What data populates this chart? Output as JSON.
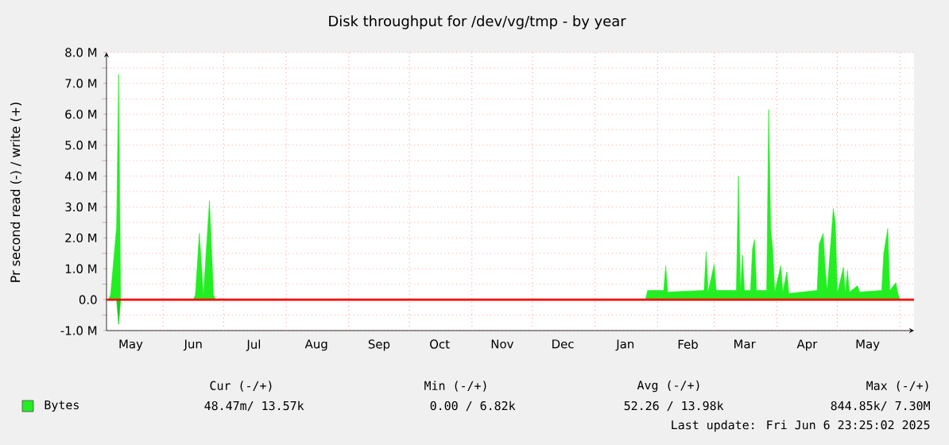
{
  "chart_data": {
    "type": "area",
    "title": "Disk throughput for /dev/vg/tmp - by year",
    "ylabel": "Pr second read (-) / write (+)",
    "xlim": [
      "2024-05-04",
      "2025-06-08"
    ],
    "ylim": [
      -1,
      8
    ],
    "yticks": [
      {
        "value": -1,
        "label": "-1.0 M"
      },
      {
        "value": 0,
        "label": "0.0"
      },
      {
        "value": 1,
        "label": "1.0 M"
      },
      {
        "value": 2,
        "label": "2.0 M"
      },
      {
        "value": 3,
        "label": "3.0 M"
      },
      {
        "value": 4,
        "label": "4.0 M"
      },
      {
        "value": 5,
        "label": "5.0 M"
      },
      {
        "value": 6,
        "label": "6.0 M"
      },
      {
        "value": 7,
        "label": "7.0 M"
      },
      {
        "value": 8,
        "label": "8.0 M"
      }
    ],
    "xticks": [
      {
        "value": "2024-05-16",
        "label": "May"
      },
      {
        "value": "2024-06-01",
        "label": null
      },
      {
        "value": "2024-06-16",
        "label": "Jun"
      },
      {
        "value": "2024-07-01",
        "label": null
      },
      {
        "value": "2024-07-16",
        "label": "Jul"
      },
      {
        "value": "2024-08-01",
        "label": null
      },
      {
        "value": "2024-08-16",
        "label": "Aug"
      },
      {
        "value": "2024-09-01",
        "label": null
      },
      {
        "value": "2024-09-16",
        "label": "Sep"
      },
      {
        "value": "2024-10-01",
        "label": null
      },
      {
        "value": "2024-10-16",
        "label": "Oct"
      },
      {
        "value": "2024-11-01",
        "label": null
      },
      {
        "value": "2024-11-16",
        "label": "Nov"
      },
      {
        "value": "2024-12-01",
        "label": null
      },
      {
        "value": "2024-12-16",
        "label": "Dec"
      },
      {
        "value": "2025-01-01",
        "label": null
      },
      {
        "value": "2025-01-16",
        "label": "Jan"
      },
      {
        "value": "2025-02-01",
        "label": null
      },
      {
        "value": "2025-02-16",
        "label": "Feb"
      },
      {
        "value": "2025-03-01",
        "label": null
      },
      {
        "value": "2025-03-16",
        "label": "Mar"
      },
      {
        "value": "2025-04-01",
        "label": null
      },
      {
        "value": "2025-04-16",
        "label": "Apr"
      },
      {
        "value": "2025-05-01",
        "label": null
      },
      {
        "value": "2025-05-16",
        "label": "May"
      },
      {
        "value": "2025-06-01",
        "label": null
      }
    ],
    "grid": true,
    "legend": "bottom left",
    "ref_lines": [
      {
        "axis": "y",
        "value": 0,
        "color": "#ff0000"
      }
    ],
    "series": [
      {
        "name": "Bytes",
        "color": "#22ee22",
        "x": [
          "2024-05-05",
          "2024-05-06",
          "2024-05-09",
          "2024-05-10",
          "2024-05-11",
          "2024-06-16",
          "2024-06-17",
          "2024-06-19",
          "2024-06-21",
          "2024-06-24",
          "2024-06-26",
          "2024-06-27",
          "2025-01-26",
          "2025-01-27",
          "2025-02-04",
          "2025-02-05",
          "2025-02-06",
          "2025-02-24",
          "2025-02-25",
          "2025-02-26",
          "2025-03-01",
          "2025-03-02",
          "2025-03-12",
          "2025-03-13",
          "2025-03-14",
          "2025-03-15",
          "2025-03-16",
          "2025-03-19",
          "2025-03-20",
          "2025-03-21",
          "2025-03-22",
          "2025-03-27",
          "2025-03-28",
          "2025-03-29",
          "2025-03-30",
          "2025-03-31",
          "2025-04-03",
          "2025-04-04",
          "2025-04-06",
          "2025-04-07",
          "2025-04-21",
          "2025-04-22",
          "2025-04-24",
          "2025-04-25",
          "2025-04-26",
          "2025-04-29",
          "2025-04-30",
          "2025-05-01",
          "2025-05-04",
          "2025-05-05",
          "2025-05-06",
          "2025-05-07",
          "2025-05-11",
          "2025-05-12",
          "2025-05-23",
          "2025-05-24",
          "2025-05-26",
          "2025-05-27",
          "2025-05-30",
          "2025-05-31",
          "2025-06-01"
        ],
        "values": [
          0,
          0.15,
          2.35,
          7.3,
          0,
          0,
          0.15,
          2.15,
          0.15,
          3.2,
          0.15,
          0,
          0,
          0.3,
          0.3,
          1.1,
          0.25,
          0.3,
          1.55,
          0.25,
          1.15,
          0.3,
          0.3,
          4.0,
          0.3,
          1.45,
          0.3,
          0.3,
          1.65,
          1.95,
          0.3,
          0.3,
          6.15,
          2.3,
          1.6,
          0.25,
          1.1,
          0.25,
          0.9,
          0.2,
          0.3,
          1.8,
          2.15,
          1.0,
          0.3,
          2.95,
          2.5,
          0.2,
          1.05,
          0.2,
          0.95,
          0.25,
          0.45,
          0.25,
          0.3,
          1.5,
          2.3,
          0.3,
          0.55,
          0.2,
          0
        ]
      },
      {
        "color": "#10d010",
        "x": [
          "2024-05-09",
          "2024-05-10",
          "2024-05-11"
        ],
        "values": [
          0,
          -0.8,
          0
        ]
      }
    ],
    "annotations": [
      "Cur (-/+)",
      "Min (-/+)",
      "Avg (-/+)",
      "Max (-/+)",
      "48.47m/   13.57k",
      "0.00 /    6.82k",
      "52.26 /   13.98k",
      "844.85k/    7.30M",
      "Last update: Fri Jun  6 23:25:02 2025"
    ]
  }
}
